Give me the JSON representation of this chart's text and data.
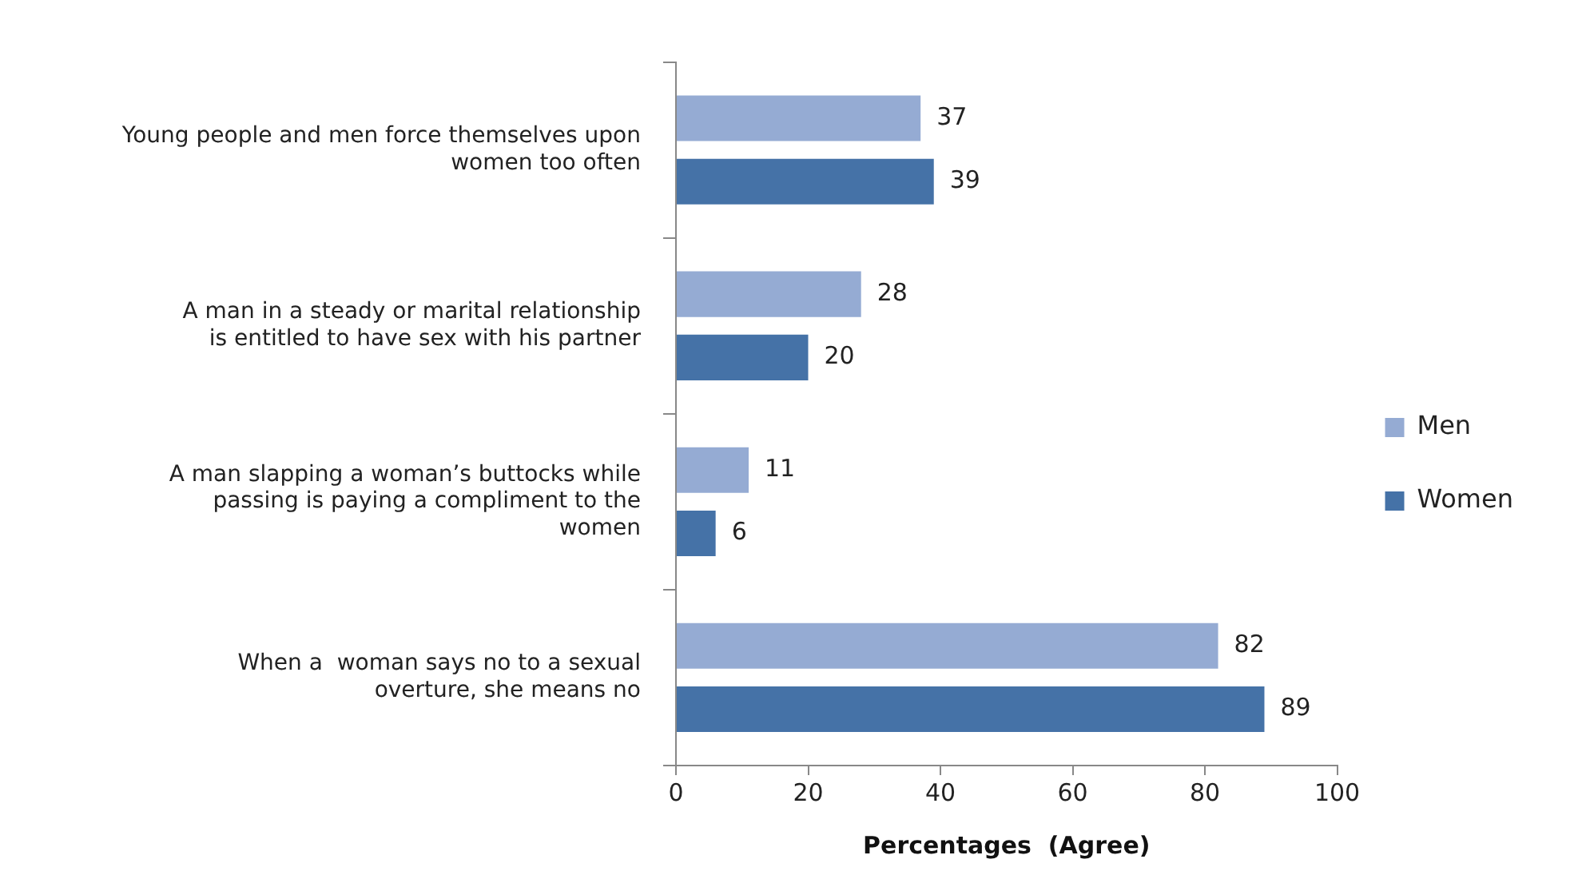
{
  "chart_data": {
    "type": "bar",
    "orientation": "horizontal",
    "xlabel": "Percentages  (Agree)",
    "categories": [
      "Young people and men force themselves upon women too often",
      "A man in a steady or marital relationship is entitled to have sex with his partner",
      "A man slapping a woman’s buttocks while passing is paying a compliment to the women",
      "When a  woman says no to a sexual overture, she means no"
    ],
    "series": [
      {
        "name": "Men",
        "color": "#95abd3",
        "values": [
          37,
          28,
          11,
          82
        ]
      },
      {
        "name": "Women",
        "color": "#4572a7",
        "values": [
          39,
          20,
          6,
          89
        ]
      }
    ],
    "xlim": [
      0,
      100
    ],
    "xticks": [
      0,
      20,
      40,
      60,
      80,
      100
    ],
    "data_labels": true,
    "grid": false,
    "legend": "right"
  }
}
